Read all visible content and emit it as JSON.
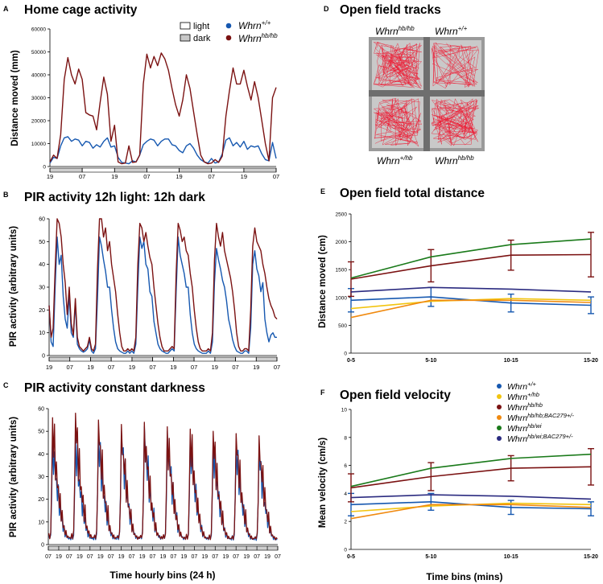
{
  "colors": {
    "wt": "#1658b0",
    "hb": "#7b1212",
    "het": "#f2c40f",
    "hb_bac": "#f08a10",
    "wi": "#1a7a1a",
    "wi_bac": "#2b2b80",
    "bar_fill": "#cfcfcf"
  },
  "panel_letters": {
    "a": "A",
    "b": "B",
    "c": "C",
    "d": "D",
    "e": "E",
    "f": "F"
  },
  "bottom_xlabel": "Time hourly bins (24 h)",
  "legend_a": {
    "light": "light",
    "dark": "dark",
    "wt_base": "Whrn",
    "wt_sup": "+/+",
    "hb_base": "Whrn",
    "hb_sup": "hb/hb"
  },
  "legend_f": [
    {
      "base": "Whrn",
      "sup": "+/+",
      "color_key": "wt"
    },
    {
      "base": "Whrn",
      "sup": "+/hb",
      "color_key": "het"
    },
    {
      "base": "Whrn",
      "sup": "hb/hb",
      "color_key": "hb"
    },
    {
      "base": "Whrn",
      "sup": "hb/hb;BAC279+/-",
      "color_key": "hb_bac"
    },
    {
      "base": "Whrn",
      "sup": "hb/wi",
      "color_key": "wi"
    },
    {
      "base": "Whrn",
      "sup": "hb/wi;BAC279+/-",
      "color_key": "wi_bac"
    }
  ],
  "panel_d": {
    "title": "Open field tracks",
    "tiles": [
      {
        "base": "Whrn",
        "sup": "hb/hb"
      },
      {
        "base": "Whrn",
        "sup": "+/+"
      },
      {
        "base": "Whrn",
        "sup": "+/hb"
      },
      {
        "base": "Whrn",
        "sup": "hb/hb"
      }
    ]
  },
  "chart_data": [
    {
      "id": "A",
      "type": "line",
      "title": "Home cage activity",
      "xlabel": "",
      "ylabel": "Distance moved (mm)",
      "ylim": [
        0,
        60000
      ],
      "yticks": [
        0,
        10000,
        20000,
        30000,
        40000,
        50000,
        60000
      ],
      "ytick_labels": [
        "0",
        "10000",
        "20000",
        "30000",
        "40000",
        "50000",
        "60000"
      ],
      "xtick_labels": [
        "19",
        "07",
        "19",
        "07",
        "19",
        "07",
        "19",
        "07"
      ],
      "light_dark_bars": [
        "dark",
        "light",
        "dark",
        "light",
        "dark",
        "light",
        "dark"
      ],
      "series": [
        {
          "name": "Whrn+/+",
          "color_key": "wt",
          "values": [
            1500,
            4000,
            3500,
            9000,
            12500,
            13000,
            11000,
            12000,
            11500,
            9000,
            11000,
            10500,
            8000,
            9500,
            8500,
            11000,
            12500,
            8500,
            9000,
            4000,
            1800,
            1500,
            1200,
            2500,
            2000,
            5000,
            9500,
            11000,
            12000,
            11500,
            9000,
            11000,
            12000,
            12000,
            9500,
            9000,
            7000,
            6000,
            9000,
            10000,
            8000,
            5000,
            3000,
            2000,
            1500,
            3500,
            1500,
            2000,
            5500,
            11500,
            12500,
            9000,
            10500,
            8500,
            11000,
            7500,
            9000,
            8500,
            9000,
            5500,
            3000,
            2500,
            10500,
            3500
          ]
        },
        {
          "name": "Whrnhb/hb",
          "color_key": "hb",
          "values": [
            2000,
            5000,
            3500,
            14000,
            38000,
            47500,
            40000,
            36000,
            42500,
            38000,
            23500,
            22500,
            22000,
            16000,
            28000,
            39000,
            31500,
            11000,
            18000,
            2000,
            1200,
            1500,
            9000,
            1800,
            2000,
            5000,
            36000,
            49000,
            43000,
            48000,
            44000,
            49500,
            47000,
            42000,
            34000,
            27000,
            22000,
            29000,
            40000,
            34000,
            24000,
            14000,
            5000,
            2000,
            1200,
            1500,
            3000,
            1800,
            4500,
            22000,
            33000,
            43000,
            36000,
            36000,
            42000,
            35000,
            29000,
            37000,
            30000,
            20000,
            10000,
            2500,
            30000,
            34500
          ]
        }
      ]
    },
    {
      "id": "B",
      "type": "line",
      "title": "PIR activity 12h light: 12h dark",
      "xlabel": "",
      "ylabel": "PIR activity (arbitrary units)",
      "ylim": [
        0,
        60
      ],
      "yticks": [
        0,
        10,
        20,
        30,
        40,
        50,
        60
      ],
      "ytick_labels": [
        "0",
        "10",
        "20",
        "30",
        "40",
        "50",
        "60"
      ],
      "xtick_labels": [
        "19",
        "07",
        "19",
        "07",
        "19",
        "07",
        "19",
        "07",
        "19",
        "07",
        "19",
        "07"
      ],
      "light_dark_bars": [
        "dark",
        "light",
        "dark",
        "light",
        "dark",
        "light",
        "dark",
        "light",
        "dark",
        "light",
        "dark"
      ],
      "series": [
        {
          "name": "Whrn+/+",
          "color_key": "wt",
          "values": [
            22,
            6,
            4,
            30,
            52,
            40,
            44,
            26,
            16,
            12,
            27,
            10,
            8,
            23,
            5,
            3,
            2,
            1.5,
            2,
            3,
            7,
            2,
            1,
            3,
            25,
            52,
            48,
            42,
            37,
            30,
            30,
            20,
            12,
            6,
            3,
            2,
            1.5,
            1,
            1,
            2,
            1,
            2,
            1,
            5,
            30,
            52,
            47,
            50,
            40,
            38,
            28,
            26,
            15,
            10,
            5,
            3,
            2,
            1.5,
            1,
            1,
            2,
            3,
            2,
            28,
            52,
            44,
            40,
            36,
            30,
            30,
            18,
            10,
            5,
            3,
            2,
            1.5,
            1,
            1,
            1,
            2,
            1,
            6,
            32,
            47,
            42,
            38,
            33,
            30,
            24,
            16,
            12,
            7,
            4,
            2,
            1.5,
            1,
            1,
            2,
            2,
            1,
            12,
            40,
            46,
            38,
            35,
            28,
            32,
            16,
            10,
            6,
            9,
            10,
            8,
            8
          ]
        },
        {
          "name": "Whrnhb/hb",
          "color_key": "hb",
          "values": [
            22,
            8,
            12,
            38,
            60,
            58,
            52,
            40,
            32,
            18,
            30,
            14,
            9,
            25,
            8,
            4,
            3,
            2,
            3,
            4,
            8,
            3,
            2,
            5,
            38,
            60,
            60,
            52,
            56,
            46,
            50,
            40,
            34,
            28,
            18,
            10,
            4,
            2,
            2,
            3,
            2,
            3,
            2,
            8,
            40,
            58,
            56,
            50,
            54,
            48,
            43,
            40,
            30,
            22,
            14,
            8,
            4,
            2,
            2,
            2,
            3,
            4,
            3,
            36,
            58,
            55,
            50,
            52,
            46,
            44,
            36,
            30,
            20,
            12,
            6,
            3,
            2,
            2,
            2,
            3,
            2,
            10,
            42,
            58,
            52,
            48,
            54,
            46,
            42,
            38,
            34,
            28,
            20,
            10,
            4,
            2,
            2,
            3,
            3,
            2,
            20,
            48,
            56,
            50,
            48,
            46,
            40,
            36,
            30,
            25,
            22,
            20,
            17,
            16
          ]
        }
      ]
    },
    {
      "id": "C",
      "type": "line",
      "title": "PIR activity constant darkness",
      "xlabel": "",
      "ylabel": "PIR activity (arbitrary units)",
      "ylim": [
        0,
        60
      ],
      "yticks": [
        0,
        10,
        20,
        30,
        40,
        50,
        60
      ],
      "ytick_labels": [
        "0",
        "10",
        "20",
        "30",
        "40",
        "50",
        "60"
      ],
      "xtick_labels": [
        "07",
        "19",
        "07",
        "19",
        "07",
        "19",
        "07",
        "19",
        "07",
        "19",
        "07",
        "19",
        "07",
        "19",
        "07",
        "19",
        "07",
        "19",
        "07",
        "19",
        "07",
        "19",
        "07"
      ],
      "cycles": 10,
      "series": [
        {
          "name": "Whrn+/+",
          "color_key": "wt",
          "cycle_peaks": [
            48,
            47,
            48,
            50,
            52,
            50,
            48,
            46,
            44,
            42
          ]
        },
        {
          "name": "Whrnhb/hb",
          "color_key": "hb",
          "cycle_peaks": [
            56,
            58,
            55,
            53,
            54,
            52,
            51,
            50,
            49,
            48
          ]
        }
      ]
    },
    {
      "id": "E",
      "type": "line",
      "title": "Open field total distance",
      "xlabel": "",
      "ylabel": "Distance moved (cm)",
      "categories": [
        "0-5",
        "5-10",
        "10-15",
        "15-20"
      ],
      "ylim": [
        0,
        2500
      ],
      "yticks": [
        0,
        500,
        1000,
        1500,
        2000,
        2500
      ],
      "ytick_labels": [
        "0",
        "500",
        "1000",
        "1500",
        "2000",
        "2500"
      ],
      "series": [
        {
          "name": "Whrn+/+",
          "color_key": "wt",
          "values": [
            950,
            1010,
            900,
            860
          ],
          "err": [
            210,
            170,
            160,
            150
          ]
        },
        {
          "name": "Whrn+/hb",
          "color_key": "het",
          "values": [
            800,
            930,
            980,
            950
          ],
          "err": [
            0,
            0,
            0,
            0
          ]
        },
        {
          "name": "Whrnhb/hb",
          "color_key": "hb",
          "values": [
            1330,
            1570,
            1760,
            1770
          ],
          "err": [
            310,
            290,
            270,
            400
          ]
        },
        {
          "name": "Whrnhb/hb;BAC279+/-",
          "color_key": "hb_bac",
          "values": [
            640,
            950,
            950,
            910
          ],
          "err": [
            0,
            0,
            0,
            0
          ]
        },
        {
          "name": "Whrnhb/wi",
          "color_key": "wi",
          "values": [
            1350,
            1730,
            1950,
            2050
          ],
          "err": [
            0,
            0,
            0,
            0
          ]
        },
        {
          "name": "Whrnhb/wi;BAC279+/-",
          "color_key": "wi_bac",
          "values": [
            1100,
            1180,
            1150,
            1100
          ],
          "err": [
            0,
            0,
            0,
            0
          ]
        }
      ]
    },
    {
      "id": "F",
      "type": "line",
      "title": "Open field velocity",
      "xlabel": "Time bins (mins)",
      "ylabel": "Mean velocity (cm/s)",
      "categories": [
        "0-5",
        "5-10",
        "10-15",
        "15-20"
      ],
      "ylim": [
        0,
        10
      ],
      "yticks": [
        0,
        2,
        4,
        6,
        8,
        10
      ],
      "ytick_labels": [
        "0",
        "2",
        "4",
        "6",
        "8",
        "10"
      ],
      "series": [
        {
          "name": "Whrn+/+",
          "color_key": "wt",
          "values": [
            3.2,
            3.4,
            3.0,
            2.9
          ],
          "err": [
            0.8,
            0.6,
            0.5,
            0.5
          ]
        },
        {
          "name": "Whrn+/hb",
          "color_key": "het",
          "values": [
            2.7,
            3.1,
            3.3,
            3.2
          ],
          "err": [
            0,
            0,
            0,
            0
          ]
        },
        {
          "name": "Whrnhb/hb",
          "color_key": "hb",
          "values": [
            4.4,
            5.2,
            5.8,
            5.9
          ],
          "err": [
            1.0,
            1.0,
            0.9,
            1.3
          ]
        },
        {
          "name": "Whrnhb/hb;BAC279+/-",
          "color_key": "hb_bac",
          "values": [
            2.2,
            3.2,
            3.2,
            3.0
          ],
          "err": [
            0,
            0,
            0,
            0
          ]
        },
        {
          "name": "Whrnhb/wi",
          "color_key": "wi",
          "values": [
            4.5,
            5.8,
            6.5,
            6.8
          ],
          "err": [
            0,
            0,
            0,
            0
          ]
        },
        {
          "name": "Whrnhb/wi;BAC279+/-",
          "color_key": "wi_bac",
          "values": [
            3.7,
            3.9,
            3.8,
            3.6
          ],
          "err": [
            0,
            0,
            0,
            0
          ]
        }
      ]
    }
  ]
}
